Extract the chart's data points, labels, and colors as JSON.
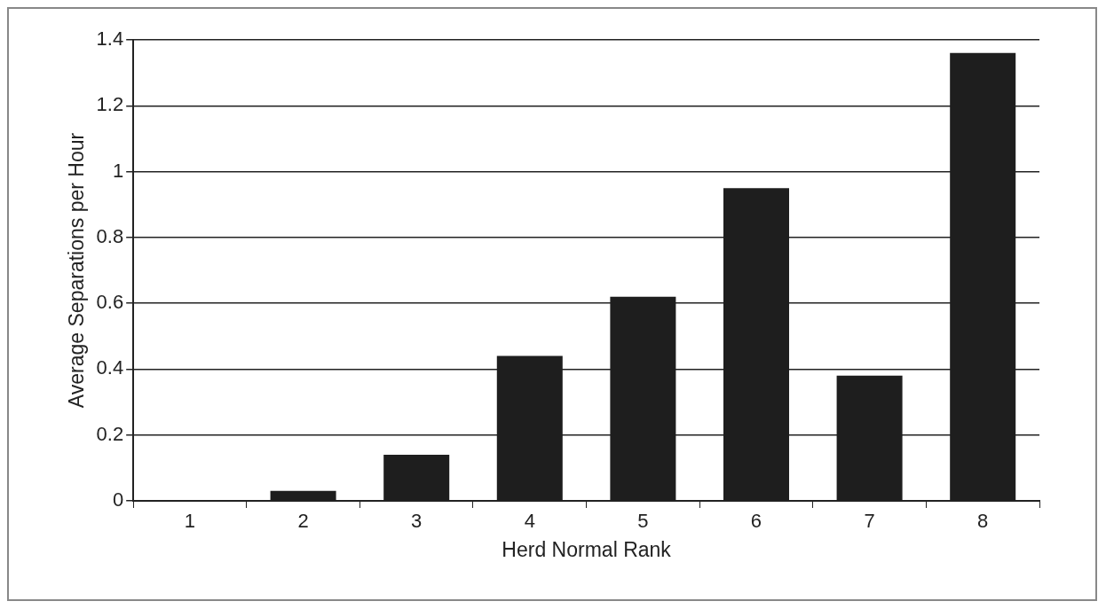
{
  "chart_data": {
    "type": "bar",
    "xlabel": "Herd Normal Rank",
    "ylabel": "Average Separations per Hour",
    "categories": [
      "1",
      "2",
      "3",
      "4",
      "5",
      "6",
      "7",
      "8"
    ],
    "values": [
      0,
      0.03,
      0.14,
      0.44,
      0.62,
      0.95,
      0.38,
      1.36
    ],
    "color": "#1e1e1e",
    "ylim": [
      0,
      1.4
    ],
    "yticks": [
      0,
      0.2,
      0.4,
      0.6,
      0.8,
      1,
      1.2,
      1.4
    ],
    "grid": "y",
    "legend": false
  }
}
